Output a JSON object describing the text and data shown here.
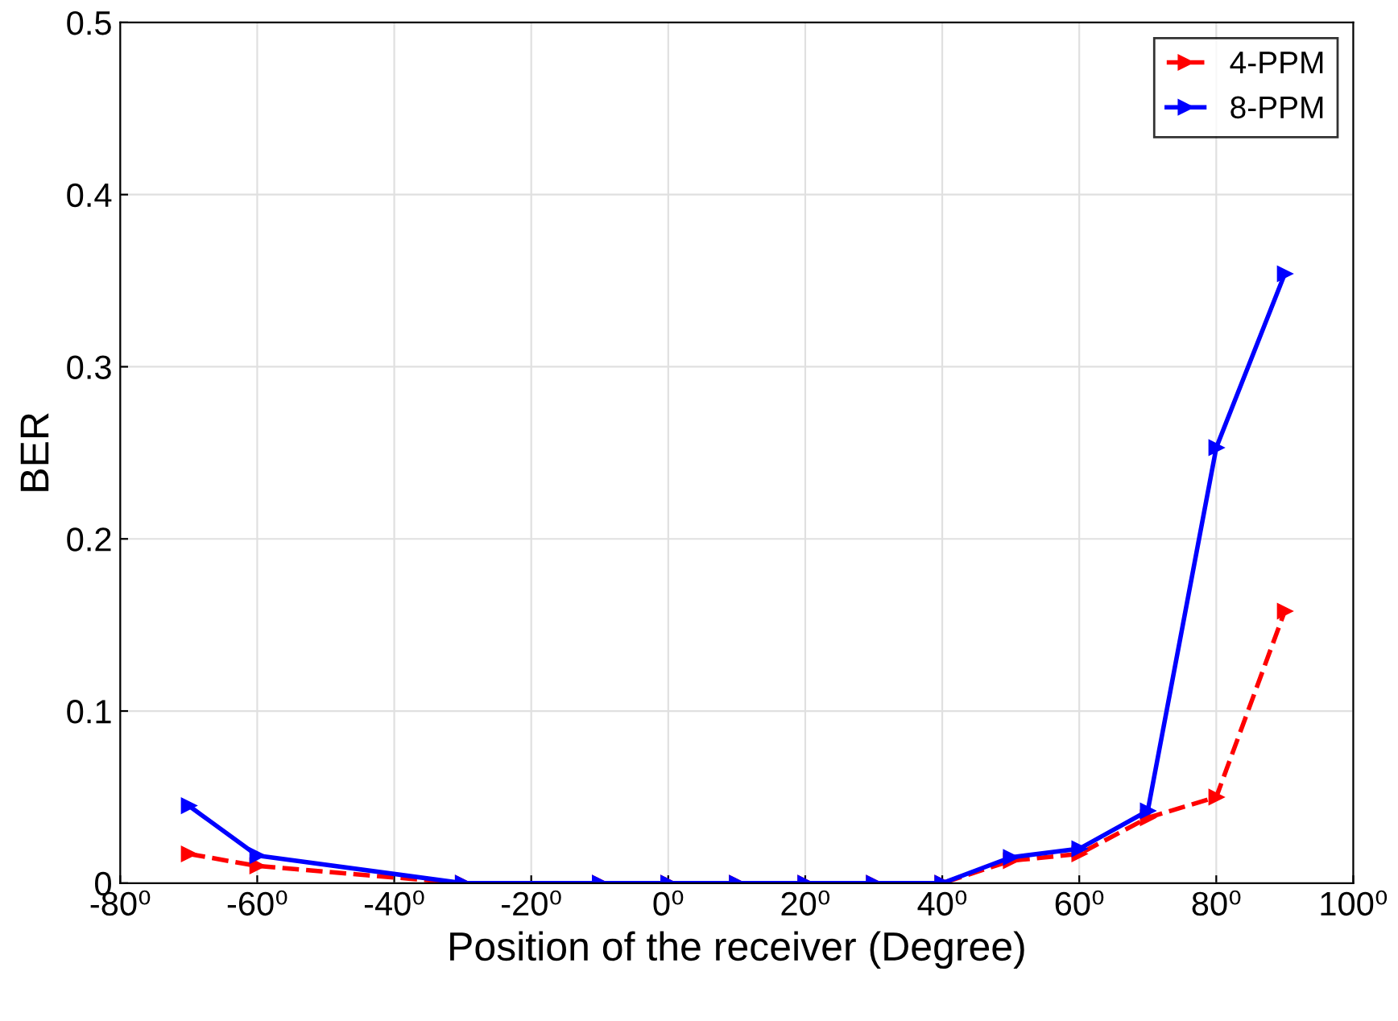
{
  "chart_data": {
    "type": "line",
    "xlabel": "Position of the receiver (Degree)",
    "ylabel": "BER",
    "x": [
      -70,
      -60,
      -30,
      -10,
      0,
      10,
      20,
      30,
      40,
      50,
      60,
      70,
      80,
      90
    ],
    "series": [
      {
        "name": "4-PPM",
        "color": "#ff0000",
        "line_style": "dashed",
        "values": [
          0.017,
          0.01,
          0,
          0,
          0,
          0,
          0,
          0,
          0,
          0.013,
          0.017,
          0.038,
          0.05,
          0.158
        ]
      },
      {
        "name": "8-PPM",
        "color": "#0000ff",
        "line_style": "solid",
        "values": [
          0.045,
          0.016,
          0,
          0,
          0,
          0,
          0,
          0,
          0,
          0.015,
          0.02,
          0.042,
          0.253,
          0.354
        ]
      }
    ],
    "xlim": [
      -80,
      100
    ],
    "xticks": [
      {
        "value": -80,
        "label": "-80⁰"
      },
      {
        "value": -60,
        "label": "-60⁰"
      },
      {
        "value": -40,
        "label": "-40⁰"
      },
      {
        "value": -20,
        "label": "-20⁰"
      },
      {
        "value": 0,
        "label": "0⁰"
      },
      {
        "value": 20,
        "label": "20⁰"
      },
      {
        "value": 40,
        "label": "40⁰"
      },
      {
        "value": 60,
        "label": "60⁰"
      },
      {
        "value": 80,
        "label": "80⁰"
      },
      {
        "value": 100,
        "label": "100⁰"
      }
    ],
    "ylim": [
      0,
      0.5
    ],
    "yticks": [
      0,
      0.1,
      0.2,
      0.3,
      0.4,
      0.5
    ],
    "grid": true,
    "legend": "top right",
    "marker": "triangle"
  }
}
